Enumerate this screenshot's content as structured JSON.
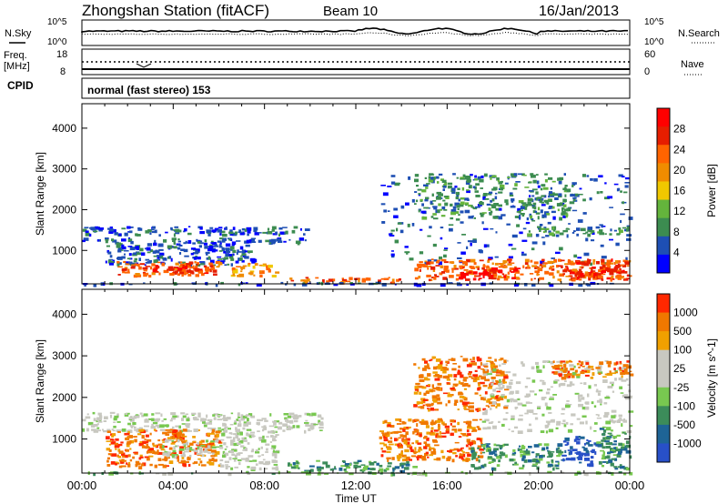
{
  "header": {
    "title": "Zhongshan Station (fitACF)",
    "beam": "Beam 10",
    "date": "16/Jan/2013"
  },
  "top_panels": {
    "nsky_label": "N.Sky",
    "nsky_ticks": [
      "10^5",
      "10^0"
    ],
    "nsearch_label": "N.Search",
    "nsearch_ticks": [
      "10^5",
      "10^0"
    ],
    "freq_label": "Freq.",
    "freq_unit": "[MHz]",
    "freq_ticks": [
      "18",
      "8"
    ],
    "nave_label": "Nave",
    "nave_ticks": [
      "60",
      "0"
    ],
    "cpid_label": "CPID",
    "cpid_text": "normal (fast stereo) 153"
  },
  "chart_data": [
    {
      "type": "heatmap",
      "name": "power",
      "ylabel": "Slant Range [km]",
      "ylim": [
        180,
        4600
      ],
      "yticks": [
        1000,
        2000,
        3000,
        4000
      ],
      "xlim": [
        0,
        24
      ],
      "colorbar_label": "Power [dB]",
      "colorbar_ticks": [
        "28",
        "24",
        "20",
        "16",
        "12",
        "8",
        "4"
      ],
      "colors": [
        "#0000ff",
        "#1e4fb4",
        "#3c8c50",
        "#64b43c",
        "#f0c800",
        "#f08c00",
        "#ff6400",
        "#e61e00",
        "#ff0000"
      ],
      "regions": [
        {
          "t0": 0.0,
          "t1": 10.0,
          "r0": 1400,
          "r1": 1600,
          "level": 1
        },
        {
          "t0": 0.0,
          "t1": 10.0,
          "r0": 1200,
          "r1": 1320,
          "level": 1
        },
        {
          "t0": 1.0,
          "t1": 7.5,
          "r0": 650,
          "r1": 1200,
          "level": 1
        },
        {
          "t0": 1.5,
          "t1": 6.0,
          "r0": 400,
          "r1": 750,
          "level": 6
        },
        {
          "t0": 3.0,
          "t1": 5.5,
          "r0": 450,
          "r1": 650,
          "level": 7
        },
        {
          "t0": 6.5,
          "t1": 8.5,
          "r0": 400,
          "r1": 700,
          "level": 5
        },
        {
          "t0": 9.0,
          "t1": 14.0,
          "r0": 220,
          "r1": 350,
          "level": 6
        },
        {
          "t0": 13.0,
          "t1": 24.0,
          "r0": 700,
          "r1": 2900,
          "level": 1
        },
        {
          "t0": 14.5,
          "t1": 21.5,
          "r0": 1800,
          "r1": 2900,
          "level": 2
        },
        {
          "t0": 14.5,
          "t1": 24.0,
          "r0": 300,
          "r1": 800,
          "level": 6
        },
        {
          "t0": 16.5,
          "t1": 19.0,
          "r0": 300,
          "r1": 600,
          "level": 8
        },
        {
          "t0": 21.0,
          "t1": 24.0,
          "r0": 300,
          "r1": 800,
          "level": 7
        },
        {
          "t0": 19.5,
          "t1": 24.0,
          "r0": 1400,
          "r1": 1600,
          "level": 2
        },
        {
          "t0": 0.0,
          "t1": 24.0,
          "r0": 180,
          "r1": 230,
          "level": 1
        }
      ]
    },
    {
      "type": "heatmap",
      "name": "velocity",
      "ylabel": "Slant Range [km]",
      "xlabel": "Time UT",
      "ylim": [
        180,
        4600
      ],
      "yticks": [
        1000,
        2000,
        3000,
        4000
      ],
      "xlim": [
        0,
        24
      ],
      "xticks": [
        "00:00",
        "04:00",
        "08:00",
        "12:00",
        "16:00",
        "20:00",
        "00:00"
      ],
      "colorbar_label": "Velocity [m s^-1]",
      "colorbar_ticks": [
        "1000",
        "500",
        "100",
        "25",
        "-25",
        "-100",
        "-500",
        "-1000"
      ],
      "colors": [
        "#2850c8",
        "#1e6496",
        "#3c8c5a",
        "#78c850",
        "#c8c8c0",
        "#c8c8c0",
        "#f0a000",
        "#f07800",
        "#ff2800"
      ],
      "regions": [
        {
          "t0": 0.0,
          "t1": 10.5,
          "r0": 1200,
          "r1": 1650,
          "level": 4
        },
        {
          "t0": 1.0,
          "t1": 6.0,
          "r0": 350,
          "r1": 1250,
          "level": 7
        },
        {
          "t0": 3.5,
          "t1": 6.0,
          "r0": 600,
          "r1": 1000,
          "level": 4
        },
        {
          "t0": 6.0,
          "t1": 8.5,
          "r0": 300,
          "r1": 1200,
          "level": 4
        },
        {
          "t0": 9.0,
          "t1": 14.5,
          "r0": 250,
          "r1": 500,
          "level": 2
        },
        {
          "t0": 13.0,
          "t1": 17.5,
          "r0": 500,
          "r1": 1500,
          "level": 7
        },
        {
          "t0": 14.5,
          "t1": 18.5,
          "r0": 1700,
          "r1": 3000,
          "level": 7
        },
        {
          "t0": 17.5,
          "t1": 24.0,
          "r0": 1200,
          "r1": 2900,
          "level": 4
        },
        {
          "t0": 17.0,
          "t1": 21.0,
          "r0": 300,
          "r1": 900,
          "level": 2
        },
        {
          "t0": 21.0,
          "t1": 22.5,
          "r0": 400,
          "r1": 1100,
          "level": 0
        },
        {
          "t0": 22.5,
          "t1": 24.0,
          "r0": 300,
          "r1": 1300,
          "level": 2
        },
        {
          "t0": 20.5,
          "t1": 24.0,
          "r0": 2500,
          "r1": 2900,
          "level": 7
        },
        {
          "t0": 0.0,
          "t1": 24.0,
          "r0": 180,
          "r1": 230,
          "level": 3
        }
      ]
    }
  ]
}
